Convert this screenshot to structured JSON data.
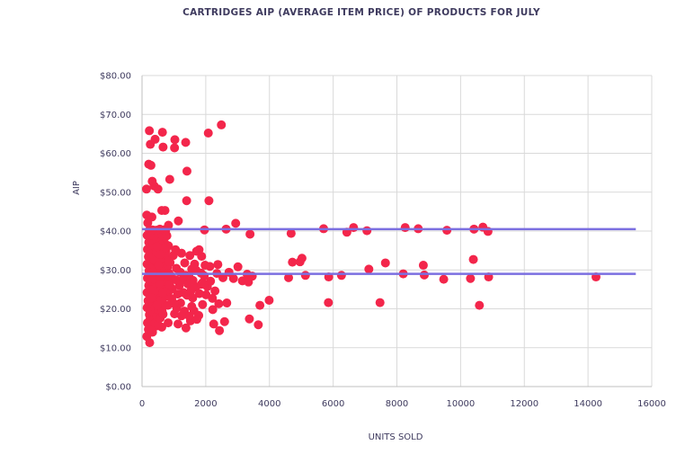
{
  "chart_data": {
    "type": "scatter",
    "title": "CARTRIDGES AIP (AVERAGE ITEM PRICE) OF PRODUCTS FOR JULY",
    "xlabel": "UNITS SOLD",
    "ylabel": "AIP",
    "xlim": [
      0,
      16000
    ],
    "ylim": [
      0,
      80
    ],
    "x_ticks": [
      "0",
      "2000",
      "4000",
      "6000",
      "8000",
      "10000",
      "12000",
      "14000",
      "16000"
    ],
    "y_ticks": [
      "$0.00",
      "$10.00",
      "$20.00",
      "$30.00",
      "$40.00",
      "$50.00",
      "$60.00",
      "$70.00",
      "$80.00"
    ],
    "grid": true,
    "point_color": "#f3264b",
    "line_color": "#7b6fe0",
    "reference_lines": [
      {
        "y": 40.5,
        "x_range": [
          0,
          15500
        ]
      },
      {
        "y": 29.0,
        "x_range": [
          0,
          15500
        ]
      }
    ],
    "points": [
      [
        230,
        65.8
      ],
      [
        640,
        65.4
      ],
      [
        410,
        63.6
      ],
      [
        260,
        62.3
      ],
      [
        1030,
        63.5
      ],
      [
        1370,
        62.8
      ],
      [
        660,
        61.6
      ],
      [
        1020,
        61.4
      ],
      [
        210,
        57.2
      ],
      [
        280,
        56.9
      ],
      [
        1410,
        55.4
      ],
      [
        870,
        53.3
      ],
      [
        320,
        52.8
      ],
      [
        380,
        51.6
      ],
      [
        140,
        50.8
      ],
      [
        500,
        50.8
      ],
      [
        2080,
        65.2
      ],
      [
        2490,
        67.3
      ],
      [
        1400,
        47.8
      ],
      [
        2100,
        47.8
      ],
      [
        620,
        45.3
      ],
      [
        720,
        45.3
      ],
      [
        150,
        44.1
      ],
      [
        310,
        43.6
      ],
      [
        1140,
        42.6
      ],
      [
        2940,
        42.0
      ],
      [
        830,
        41.5
      ],
      [
        1960,
        40.3
      ],
      [
        2640,
        40.5
      ],
      [
        3390,
        39.2
      ],
      [
        4680,
        39.4
      ],
      [
        5700,
        40.6
      ],
      [
        6430,
        39.7
      ],
      [
        6640,
        40.9
      ],
      [
        7060,
        40.1
      ],
      [
        8260,
        40.9
      ],
      [
        8670,
        40.6
      ],
      [
        9570,
        40.2
      ],
      [
        10420,
        40.5
      ],
      [
        10700,
        41.0
      ],
      [
        10860,
        39.9
      ],
      [
        4720,
        32.0
      ],
      [
        4960,
        32.1
      ],
      [
        5020,
        33.0
      ],
      [
        5130,
        28.6
      ],
      [
        4600,
        28.0
      ],
      [
        5860,
        28.2
      ],
      [
        6260,
        28.6
      ],
      [
        7120,
        30.2
      ],
      [
        7640,
        31.8
      ],
      [
        8200,
        29.0
      ],
      [
        8830,
        31.2
      ],
      [
        8860,
        28.7
      ],
      [
        9470,
        27.6
      ],
      [
        10310,
        27.8
      ],
      [
        10400,
        32.7
      ],
      [
        10880,
        28.2
      ],
      [
        14250,
        28.2
      ],
      [
        5850,
        21.6
      ],
      [
        7470,
        21.6
      ],
      [
        10590,
        20.9
      ],
      [
        3990,
        22.2
      ],
      [
        3700,
        20.9
      ],
      [
        3370,
        17.4
      ],
      [
        3650,
        15.9
      ],
      [
        2250,
        16.1
      ],
      [
        2430,
        14.4
      ],
      [
        2590,
        16.7
      ],
      [
        2660,
        21.5
      ],
      [
        2410,
        21.3
      ],
      [
        2210,
        22.7
      ],
      [
        3010,
        30.8
      ],
      [
        3150,
        27.2
      ],
      [
        3340,
        26.9
      ],
      [
        3460,
        28.4
      ],
      [
        3300,
        28.9
      ],
      [
        2870,
        27.8
      ],
      [
        2730,
        29.4
      ],
      [
        2540,
        28.0
      ],
      [
        2380,
        31.4
      ],
      [
        2130,
        30.9
      ],
      [
        1980,
        31.2
      ],
      [
        1870,
        33.5
      ],
      [
        1710,
        34.8
      ],
      [
        1790,
        35.2
      ],
      [
        1500,
        33.7
      ],
      [
        1240,
        34.3
      ],
      [
        240,
        11.3
      ],
      [
        330,
        14.0
      ],
      [
        460,
        15.6
      ],
      [
        620,
        15.3
      ],
      [
        820,
        16.4
      ],
      [
        1020,
        18.7
      ],
      [
        1130,
        16.1
      ],
      [
        1380,
        15.1
      ],
      [
        1520,
        16.9
      ],
      [
        1630,
        19.5
      ],
      [
        1780,
        18.3
      ],
      [
        1900,
        21.1
      ],
      [
        1210,
        21.5
      ],
      [
        1410,
        23.5
      ],
      [
        1590,
        22.8
      ],
      [
        1690,
        25.6
      ],
      [
        1860,
        26.3
      ],
      [
        2010,
        23.6
      ],
      [
        1260,
        27.4
      ],
      [
        1480,
        28.1
      ],
      [
        1560,
        30.2
      ],
      [
        1950,
        28.5
      ],
      [
        1340,
        31.8
      ],
      [
        1080,
        30.4
      ],
      [
        950,
        25.1
      ],
      [
        1120,
        23.8
      ],
      [
        1330,
        19.4
      ],
      [
        1480,
        18.1
      ],
      [
        1050,
        27.5
      ],
      [
        1200,
        29.4
      ],
      [
        1600,
        27.3
      ],
      [
        1700,
        29.9
      ],
      [
        1800,
        23.9
      ],
      [
        2050,
        25.7
      ],
      [
        2150,
        27.1
      ],
      [
        2290,
        24.6
      ],
      [
        980,
        33.7
      ],
      [
        1050,
        35.2
      ],
      [
        880,
        31.9
      ],
      [
        930,
        22.6
      ],
      [
        1170,
        26.0
      ],
      [
        1300,
        24.2
      ],
      [
        1440,
        26.4
      ],
      [
        1560,
        20.6
      ],
      [
        1720,
        17.3
      ],
      [
        1850,
        29.2
      ],
      [
        1650,
        31.5
      ],
      [
        1900,
        26.7
      ],
      [
        2350,
        29.1
      ],
      [
        2220,
        19.8
      ],
      [
        1240,
        18.2
      ],
      [
        1090,
        20.2
      ],
      [
        1370,
        28.6
      ],
      [
        1540,
        24.7
      ],
      [
        900,
        28.5
      ],
      [
        1000,
        21.4
      ],
      [
        820,
        24.3
      ],
      [
        150,
        12.9
      ],
      [
        200,
        14.7
      ],
      [
        170,
        16.4
      ],
      [
        230,
        18.5
      ],
      [
        160,
        20.3
      ],
      [
        190,
        22.1
      ],
      [
        160,
        24.2
      ],
      [
        210,
        26.0
      ],
      [
        170,
        27.9
      ],
      [
        220,
        29.8
      ],
      [
        160,
        31.5
      ],
      [
        200,
        33.4
      ],
      [
        170,
        35.3
      ],
      [
        210,
        37.1
      ],
      [
        160,
        38.9
      ],
      [
        230,
        40.2
      ],
      [
        180,
        42.1
      ],
      [
        250,
        17.3
      ],
      [
        240,
        21.2
      ],
      [
        260,
        25.1
      ],
      [
        250,
        29.0
      ],
      [
        260,
        33.0
      ],
      [
        250,
        36.9
      ],
      [
        280,
        15.4
      ],
      [
        300,
        19.3
      ],
      [
        310,
        23.2
      ],
      [
        300,
        27.1
      ],
      [
        320,
        31.1
      ],
      [
        310,
        35.0
      ],
      [
        300,
        38.9
      ],
      [
        340,
        17.2
      ],
      [
        360,
        21.1
      ],
      [
        350,
        25.0
      ],
      [
        370,
        29.0
      ],
      [
        360,
        32.9
      ],
      [
        350,
        36.8
      ],
      [
        380,
        40.1
      ],
      [
        400,
        16.3
      ],
      [
        410,
        20.2
      ],
      [
        420,
        24.1
      ],
      [
        400,
        28.0
      ],
      [
        430,
        31.9
      ],
      [
        410,
        35.8
      ],
      [
        420,
        38.7
      ],
      [
        460,
        18.1
      ],
      [
        470,
        22.0
      ],
      [
        480,
        26.0
      ],
      [
        460,
        29.9
      ],
      [
        490,
        33.8
      ],
      [
        470,
        37.7
      ],
      [
        500,
        15.9
      ],
      [
        520,
        19.8
      ],
      [
        530,
        23.7
      ],
      [
        510,
        27.6
      ],
      [
        540,
        31.6
      ],
      [
        520,
        35.5
      ],
      [
        530,
        39.4
      ],
      [
        570,
        17.6
      ],
      [
        580,
        21.5
      ],
      [
        590,
        25.4
      ],
      [
        570,
        29.3
      ],
      [
        600,
        33.2
      ],
      [
        580,
        37.2
      ],
      [
        630,
        19.4
      ],
      [
        640,
        23.3
      ],
      [
        650,
        27.2
      ],
      [
        630,
        31.1
      ],
      [
        660,
        35.1
      ],
      [
        640,
        38.9
      ],
      [
        690,
        21.1
      ],
      [
        700,
        25.0
      ],
      [
        710,
        29.0
      ],
      [
        690,
        32.9
      ],
      [
        720,
        36.8
      ],
      [
        750,
        23.2
      ],
      [
        760,
        27.1
      ],
      [
        770,
        31.0
      ],
      [
        750,
        34.9
      ],
      [
        780,
        38.8
      ],
      [
        810,
        20.9
      ],
      [
        820,
        26.8
      ],
      [
        800,
        30.7
      ],
      [
        830,
        36.2
      ],
      [
        850,
        29.1
      ],
      [
        860,
        33.0
      ],
      [
        740,
        40.0
      ],
      [
        680,
        40.3
      ],
      [
        560,
        40.5
      ],
      [
        440,
        40.2
      ],
      [
        330,
        40.3
      ],
      [
        480,
        21.0
      ],
      [
        540,
        26.6
      ],
      [
        620,
        29.8
      ],
      [
        660,
        18.6
      ],
      [
        720,
        24.4
      ],
      [
        390,
        32.6
      ],
      [
        290,
        34.2
      ],
      [
        450,
        34.6
      ],
      [
        590,
        36.4
      ],
      [
        710,
        33.9
      ],
      [
        780,
        28.3
      ],
      [
        830,
        32.2
      ],
      [
        870,
        26.1
      ],
      [
        420,
        30.3
      ],
      [
        360,
        27.7
      ],
      [
        520,
        31.2
      ],
      [
        610,
        22.4
      ],
      [
        690,
        35.6
      ],
      [
        570,
        34.0
      ],
      [
        470,
        36.0
      ],
      [
        380,
        24.4
      ],
      [
        290,
        22.8
      ],
      [
        260,
        30.3
      ],
      [
        330,
        29.4
      ],
      [
        650,
        24.1
      ],
      [
        560,
        28.2
      ]
    ]
  }
}
